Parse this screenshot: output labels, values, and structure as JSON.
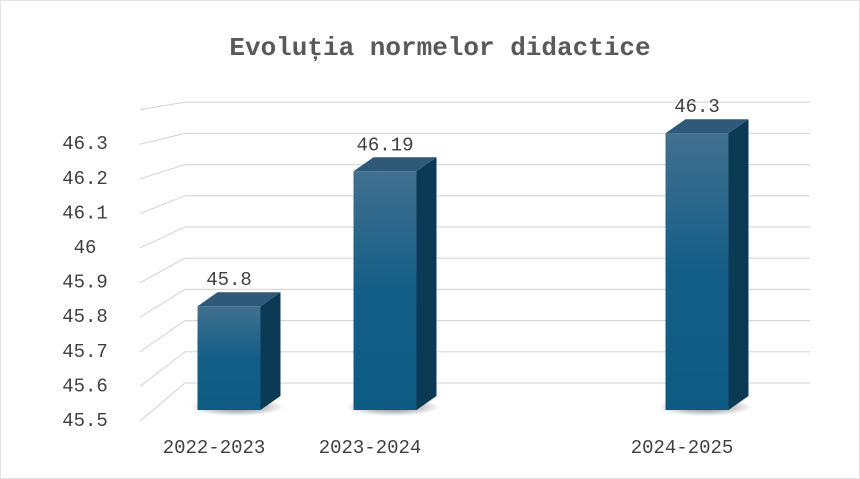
{
  "chart_data": {
    "type": "bar",
    "title": "Evoluția normelor didactice",
    "categories": [
      "2022-2023",
      "2023-2024",
      null,
      "2024-2025"
    ],
    "values": [
      45.8,
      46.19,
      null,
      46.3
    ],
    "ylim": [
      45.5,
      46.4
    ],
    "yticks": [
      45.5,
      45.6,
      45.7,
      45.8,
      45.9,
      46,
      46.1,
      46.2,
      46.3
    ],
    "grid": true,
    "color": "#185f87"
  }
}
